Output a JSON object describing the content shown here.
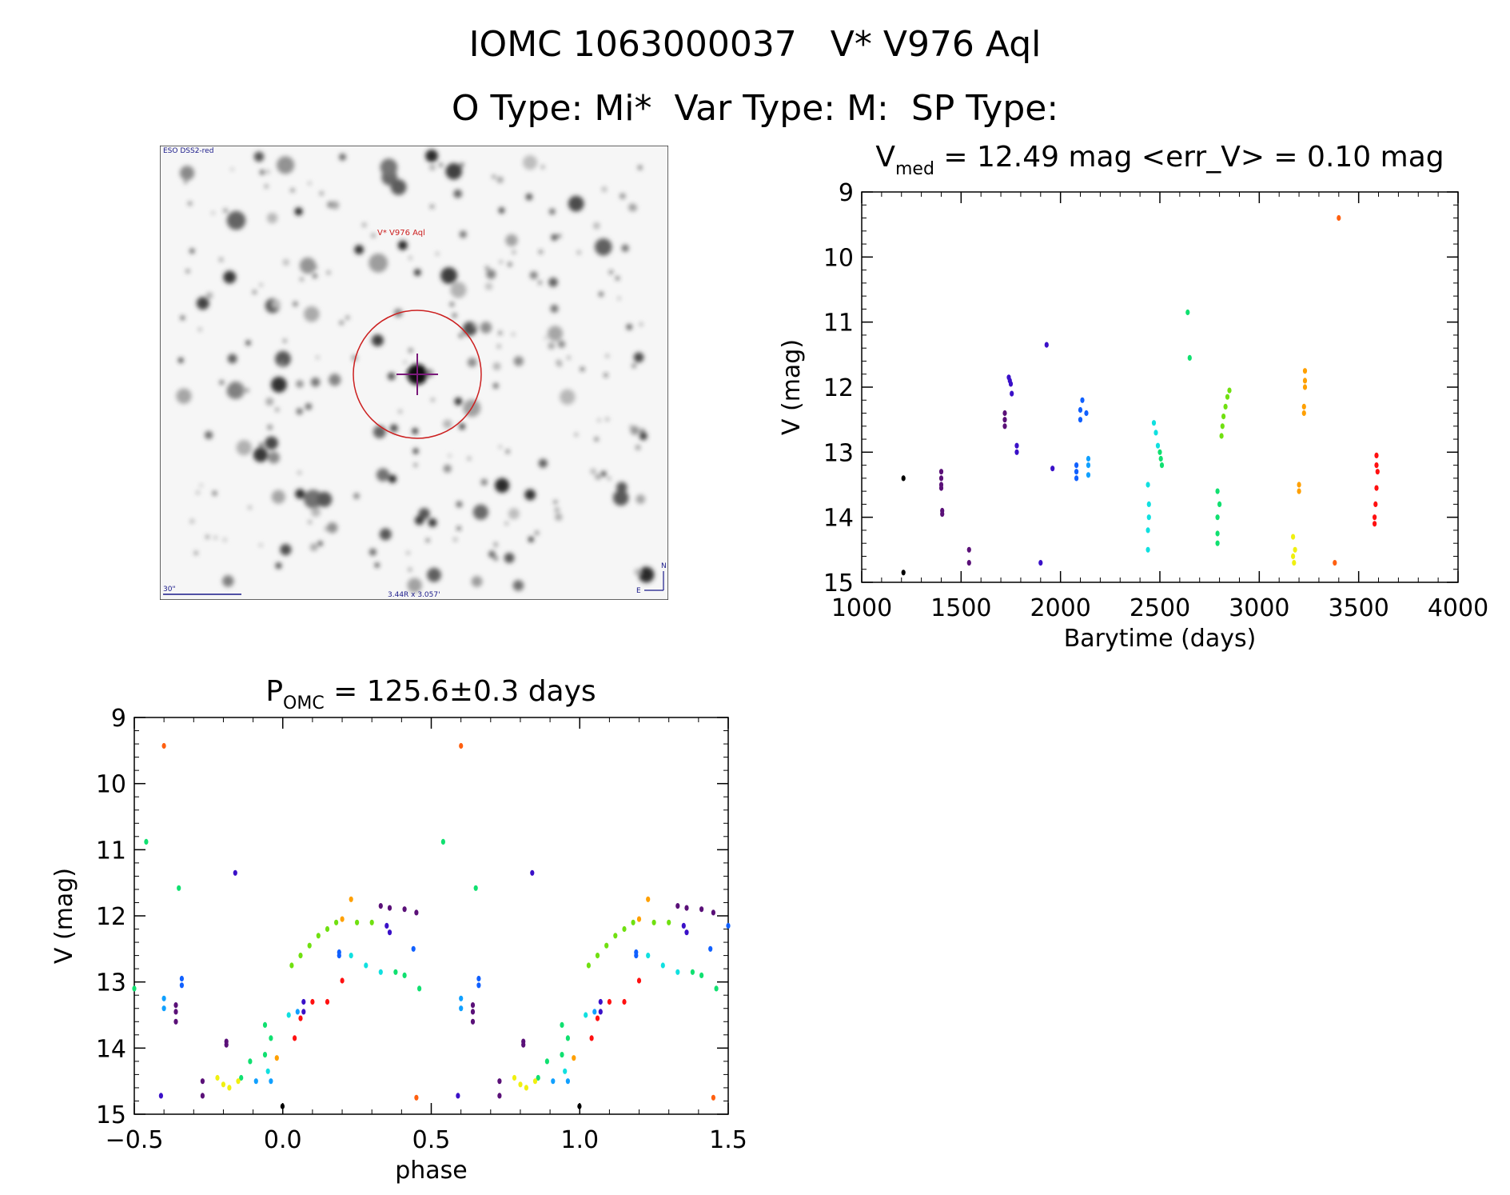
{
  "header": {
    "title_line1": "IOMC 1063000037   V* V976 Aql",
    "title_line2": "O Type: Mi*  Var Type: M:  SP Type:"
  },
  "finding_chart": {
    "survey_label": "ESO DSS2-red",
    "target_label": "V* V976 Aql",
    "scale_label": "30\"",
    "size_label": "3.44R x 3.057'",
    "east_label": "E",
    "north_label": "N"
  },
  "colors": {
    "markers": [
      "#000000",
      "#5a1078",
      "#3a10c8",
      "#1060ff",
      "#10a0ff",
      "#10e0e0",
      "#10e070",
      "#70e010",
      "#f0f010",
      "#ffa000",
      "#ff6010",
      "#ff1010"
    ],
    "target_circle": "#cc2020",
    "cross": "#7a1a7a"
  },
  "chart_data": [
    {
      "type": "scatter",
      "id": "light_curve",
      "title_main": "V",
      "title_sub": "med",
      "title_rest": " = 12.49 mag <err_V> = 0.10 mag",
      "xlabel": "Barytime (days)",
      "ylabel": "V (mag)",
      "xlim": [
        1000,
        4000
      ],
      "ylim": [
        15,
        9
      ],
      "xticks": [
        1000,
        1500,
        2000,
        2500,
        3000,
        3500,
        4000
      ],
      "xtick_labels": [
        "1000",
        "1500",
        "2000",
        "2500",
        "3000",
        "3500",
        "4000"
      ],
      "yticks": [
        9,
        10,
        11,
        12,
        13,
        14,
        15
      ],
      "ytick_labels": [
        "9",
        "10",
        "11",
        "12",
        "13",
        "14",
        "15"
      ],
      "series": [
        {
          "color": "#000000",
          "points": [
            [
              1210,
              13.4
            ],
            [
              1210,
              14.85
            ]
          ]
        },
        {
          "color": "#5a1078",
          "points": [
            [
              1400,
              13.3
            ],
            [
              1400,
              13.4
            ],
            [
              1400,
              13.5
            ],
            [
              1400,
              13.55
            ],
            [
              1405,
              13.9
            ],
            [
              1405,
              13.95
            ],
            [
              1540,
              14.5
            ],
            [
              1540,
              14.7
            ],
            [
              1720,
              12.4
            ],
            [
              1720,
              12.5
            ],
            [
              1720,
              12.6
            ]
          ]
        },
        {
          "color": "#3a10c8",
          "points": [
            [
              1740,
              11.85
            ],
            [
              1745,
              11.9
            ],
            [
              1750,
              11.95
            ],
            [
              1755,
              12.1
            ],
            [
              1780,
              12.9
            ],
            [
              1780,
              13.0
            ],
            [
              1900,
              14.7
            ],
            [
              1930,
              11.35
            ],
            [
              1960,
              13.25
            ]
          ]
        },
        {
          "color": "#1060ff",
          "points": [
            [
              2080,
              13.2
            ],
            [
              2080,
              13.3
            ],
            [
              2080,
              13.4
            ],
            [
              2100,
              12.35
            ],
            [
              2100,
              12.5
            ],
            [
              2110,
              12.2
            ],
            [
              2130,
              12.4
            ]
          ]
        },
        {
          "color": "#10a0ff",
          "points": [
            [
              2140,
              13.1
            ],
            [
              2140,
              13.2
            ],
            [
              2140,
              13.35
            ]
          ]
        },
        {
          "color": "#10e0e0",
          "points": [
            [
              2440,
              13.5
            ],
            [
              2445,
              13.8
            ],
            [
              2445,
              14.0
            ],
            [
              2440,
              14.2
            ],
            [
              2440,
              14.5
            ],
            [
              2470,
              12.55
            ],
            [
              2480,
              12.7
            ],
            [
              2490,
              12.9
            ]
          ]
        },
        {
          "color": "#10e070",
          "points": [
            [
              2500,
              13.0
            ],
            [
              2505,
              13.1
            ],
            [
              2510,
              13.2
            ],
            [
              2640,
              10.85
            ],
            [
              2650,
              11.55
            ],
            [
              2790,
              13.6
            ],
            [
              2800,
              13.8
            ],
            [
              2790,
              14.0
            ],
            [
              2790,
              14.25
            ],
            [
              2790,
              14.4
            ]
          ]
        },
        {
          "color": "#70e010",
          "points": [
            [
              2810,
              12.75
            ],
            [
              2815,
              12.6
            ],
            [
              2820,
              12.45
            ],
            [
              2830,
              12.3
            ],
            [
              2840,
              12.15
            ],
            [
              2850,
              12.05
            ]
          ]
        },
        {
          "color": "#f0f010",
          "points": [
            [
              3170,
              14.3
            ],
            [
              3180,
              14.5
            ],
            [
              3170,
              14.6
            ],
            [
              3175,
              14.7
            ]
          ]
        },
        {
          "color": "#ffa000",
          "points": [
            [
              3200,
              13.5
            ],
            [
              3200,
              13.6
            ],
            [
              3230,
              11.75
            ],
            [
              3230,
              11.9
            ],
            [
              3230,
              12.0
            ],
            [
              3225,
              12.3
            ],
            [
              3225,
              12.4
            ]
          ]
        },
        {
          "color": "#ff6010",
          "points": [
            [
              3400,
              9.4
            ],
            [
              3380,
              14.7
            ]
          ]
        },
        {
          "color": "#ff1010",
          "points": [
            [
              3590,
              13.05
            ],
            [
              3595,
              13.3
            ],
            [
              3590,
              13.55
            ],
            [
              3585,
              13.8
            ],
            [
              3580,
              14.0
            ],
            [
              3580,
              14.1
            ],
            [
              3590,
              13.2
            ]
          ]
        }
      ]
    },
    {
      "type": "scatter",
      "id": "phase_curve",
      "title_main": "P",
      "title_sub": "OMC",
      "title_rest": " = 125.6±0.3 days",
      "xlabel": "phase",
      "ylabel": "V (mag)",
      "xlim": [
        -0.5,
        1.5
      ],
      "ylim": [
        15,
        9
      ],
      "xticks": [
        -0.5,
        0.0,
        0.5,
        1.0,
        1.5
      ],
      "xtick_labels": [
        "−0.5",
        "0.0",
        "0.5",
        "1.0",
        "1.5"
      ],
      "yticks": [
        9,
        10,
        11,
        12,
        13,
        14,
        15
      ],
      "ytick_labels": [
        "9",
        "10",
        "11",
        "12",
        "13",
        "14",
        "15"
      ],
      "series": [
        {
          "color": "#000000",
          "points": [
            [
              -0.001,
              14.88
            ],
            [
              0.999,
              14.88
            ]
          ]
        },
        {
          "color": "#5a1078",
          "points": [
            [
              -0.36,
              13.35
            ],
            [
              -0.36,
              13.45
            ],
            [
              -0.36,
              13.6
            ],
            [
              -0.19,
              13.9
            ],
            [
              -0.19,
              13.95
            ],
            [
              -0.27,
              14.5
            ],
            [
              -0.27,
              14.72
            ],
            [
              0.33,
              11.85
            ],
            [
              0.36,
              11.88
            ],
            [
              0.41,
              11.9
            ],
            [
              0.45,
              11.95
            ],
            [
              0.64,
              13.35
            ],
            [
              0.64,
              13.45
            ],
            [
              0.64,
              13.6
            ],
            [
              0.81,
              13.9
            ],
            [
              0.81,
              13.95
            ],
            [
              0.73,
              14.5
            ],
            [
              0.73,
              14.72
            ],
            [
              1.33,
              11.85
            ],
            [
              1.36,
              11.88
            ],
            [
              1.41,
              11.9
            ],
            [
              1.45,
              11.95
            ]
          ]
        },
        {
          "color": "#3a10c8",
          "points": [
            [
              -0.41,
              14.72
            ],
            [
              -0.16,
              11.35
            ],
            [
              0.07,
              13.3
            ],
            [
              0.07,
              13.45
            ],
            [
              0.35,
              12.15
            ],
            [
              0.36,
              12.25
            ],
            [
              0.59,
              14.72
            ],
            [
              0.84,
              11.35
            ],
            [
              1.07,
              13.3
            ],
            [
              1.07,
              13.45
            ],
            [
              1.35,
              12.15
            ],
            [
              1.36,
              12.25
            ]
          ]
        },
        {
          "color": "#1060ff",
          "points": [
            [
              -0.34,
              12.95
            ],
            [
              -0.34,
              13.05
            ],
            [
              0.19,
              12.55
            ],
            [
              0.19,
              12.6
            ],
            [
              0.44,
              12.5
            ],
            [
              0.66,
              12.95
            ],
            [
              0.66,
              13.05
            ],
            [
              1.19,
              12.55
            ],
            [
              1.19,
              12.6
            ],
            [
              1.44,
              12.5
            ],
            [
              1.5,
              12.15
            ]
          ]
        },
        {
          "color": "#10a0ff",
          "points": [
            [
              -0.4,
              13.25
            ],
            [
              -0.4,
              13.4
            ],
            [
              -0.09,
              14.5
            ],
            [
              -0.04,
              14.5
            ],
            [
              0.05,
              13.45
            ],
            [
              0.6,
              13.25
            ],
            [
              0.6,
              13.4
            ],
            [
              0.91,
              14.5
            ],
            [
              0.96,
              14.5
            ],
            [
              1.05,
              13.45
            ]
          ]
        },
        {
          "color": "#10e0e0",
          "points": [
            [
              -0.05,
              14.35
            ],
            [
              0.02,
              13.5
            ],
            [
              0.23,
              12.6
            ],
            [
              0.28,
              12.75
            ],
            [
              0.33,
              12.85
            ],
            [
              0.95,
              14.35
            ],
            [
              1.02,
              13.5
            ],
            [
              1.23,
              12.6
            ],
            [
              1.28,
              12.75
            ],
            [
              1.33,
              12.85
            ]
          ]
        },
        {
          "color": "#10e070",
          "points": [
            [
              -0.46,
              10.88
            ],
            [
              -0.35,
              11.58
            ],
            [
              -0.5,
              13.1
            ],
            [
              -0.14,
              14.45
            ],
            [
              -0.11,
              14.2
            ],
            [
              -0.06,
              14.1
            ],
            [
              -0.04,
              13.85
            ],
            [
              -0.06,
              13.65
            ],
            [
              0.38,
              12.85
            ],
            [
              0.41,
              12.9
            ],
            [
              0.46,
              13.1
            ],
            [
              0.54,
              10.88
            ],
            [
              0.65,
              11.58
            ],
            [
              0.86,
              14.45
            ],
            [
              0.89,
              14.2
            ],
            [
              0.94,
              14.1
            ],
            [
              0.96,
              13.85
            ],
            [
              0.94,
              13.65
            ],
            [
              1.38,
              12.85
            ],
            [
              1.41,
              12.9
            ],
            [
              1.46,
              13.1
            ]
          ]
        },
        {
          "color": "#70e010",
          "points": [
            [
              0.03,
              12.75
            ],
            [
              0.06,
              12.6
            ],
            [
              0.09,
              12.45
            ],
            [
              0.12,
              12.3
            ],
            [
              0.15,
              12.2
            ],
            [
              0.18,
              12.1
            ],
            [
              0.25,
              12.1
            ],
            [
              0.3,
              12.1
            ],
            [
              1.03,
              12.75
            ],
            [
              1.06,
              12.6
            ],
            [
              1.09,
              12.45
            ],
            [
              1.12,
              12.3
            ],
            [
              1.15,
              12.2
            ],
            [
              1.18,
              12.1
            ],
            [
              1.25,
              12.1
            ],
            [
              1.3,
              12.1
            ]
          ]
        },
        {
          "color": "#f0f010",
          "points": [
            [
              -0.22,
              14.45
            ],
            [
              -0.2,
              14.55
            ],
            [
              -0.18,
              14.6
            ],
            [
              -0.15,
              14.5
            ],
            [
              0.78,
              14.45
            ],
            [
              0.8,
              14.55
            ],
            [
              0.82,
              14.6
            ],
            [
              0.85,
              14.5
            ]
          ]
        },
        {
          "color": "#ffa000",
          "points": [
            [
              0.23,
              11.75
            ],
            [
              0.2,
              12.05
            ],
            [
              -0.02,
              14.15
            ],
            [
              1.23,
              11.75
            ],
            [
              1.2,
              12.05
            ],
            [
              0.98,
              14.15
            ]
          ]
        },
        {
          "color": "#ff6010",
          "points": [
            [
              -0.4,
              9.43
            ],
            [
              0.6,
              9.43
            ],
            [
              0.45,
              14.75
            ],
            [
              1.45,
              14.75
            ]
          ]
        },
        {
          "color": "#ff1010",
          "points": [
            [
              0.04,
              13.85
            ],
            [
              0.06,
              13.55
            ],
            [
              0.1,
              13.3
            ],
            [
              0.15,
              13.3
            ],
            [
              0.2,
              12.98
            ],
            [
              1.04,
              13.85
            ],
            [
              1.06,
              13.55
            ],
            [
              1.1,
              13.3
            ],
            [
              1.15,
              13.3
            ],
            [
              1.2,
              12.98
            ]
          ]
        }
      ]
    }
  ]
}
